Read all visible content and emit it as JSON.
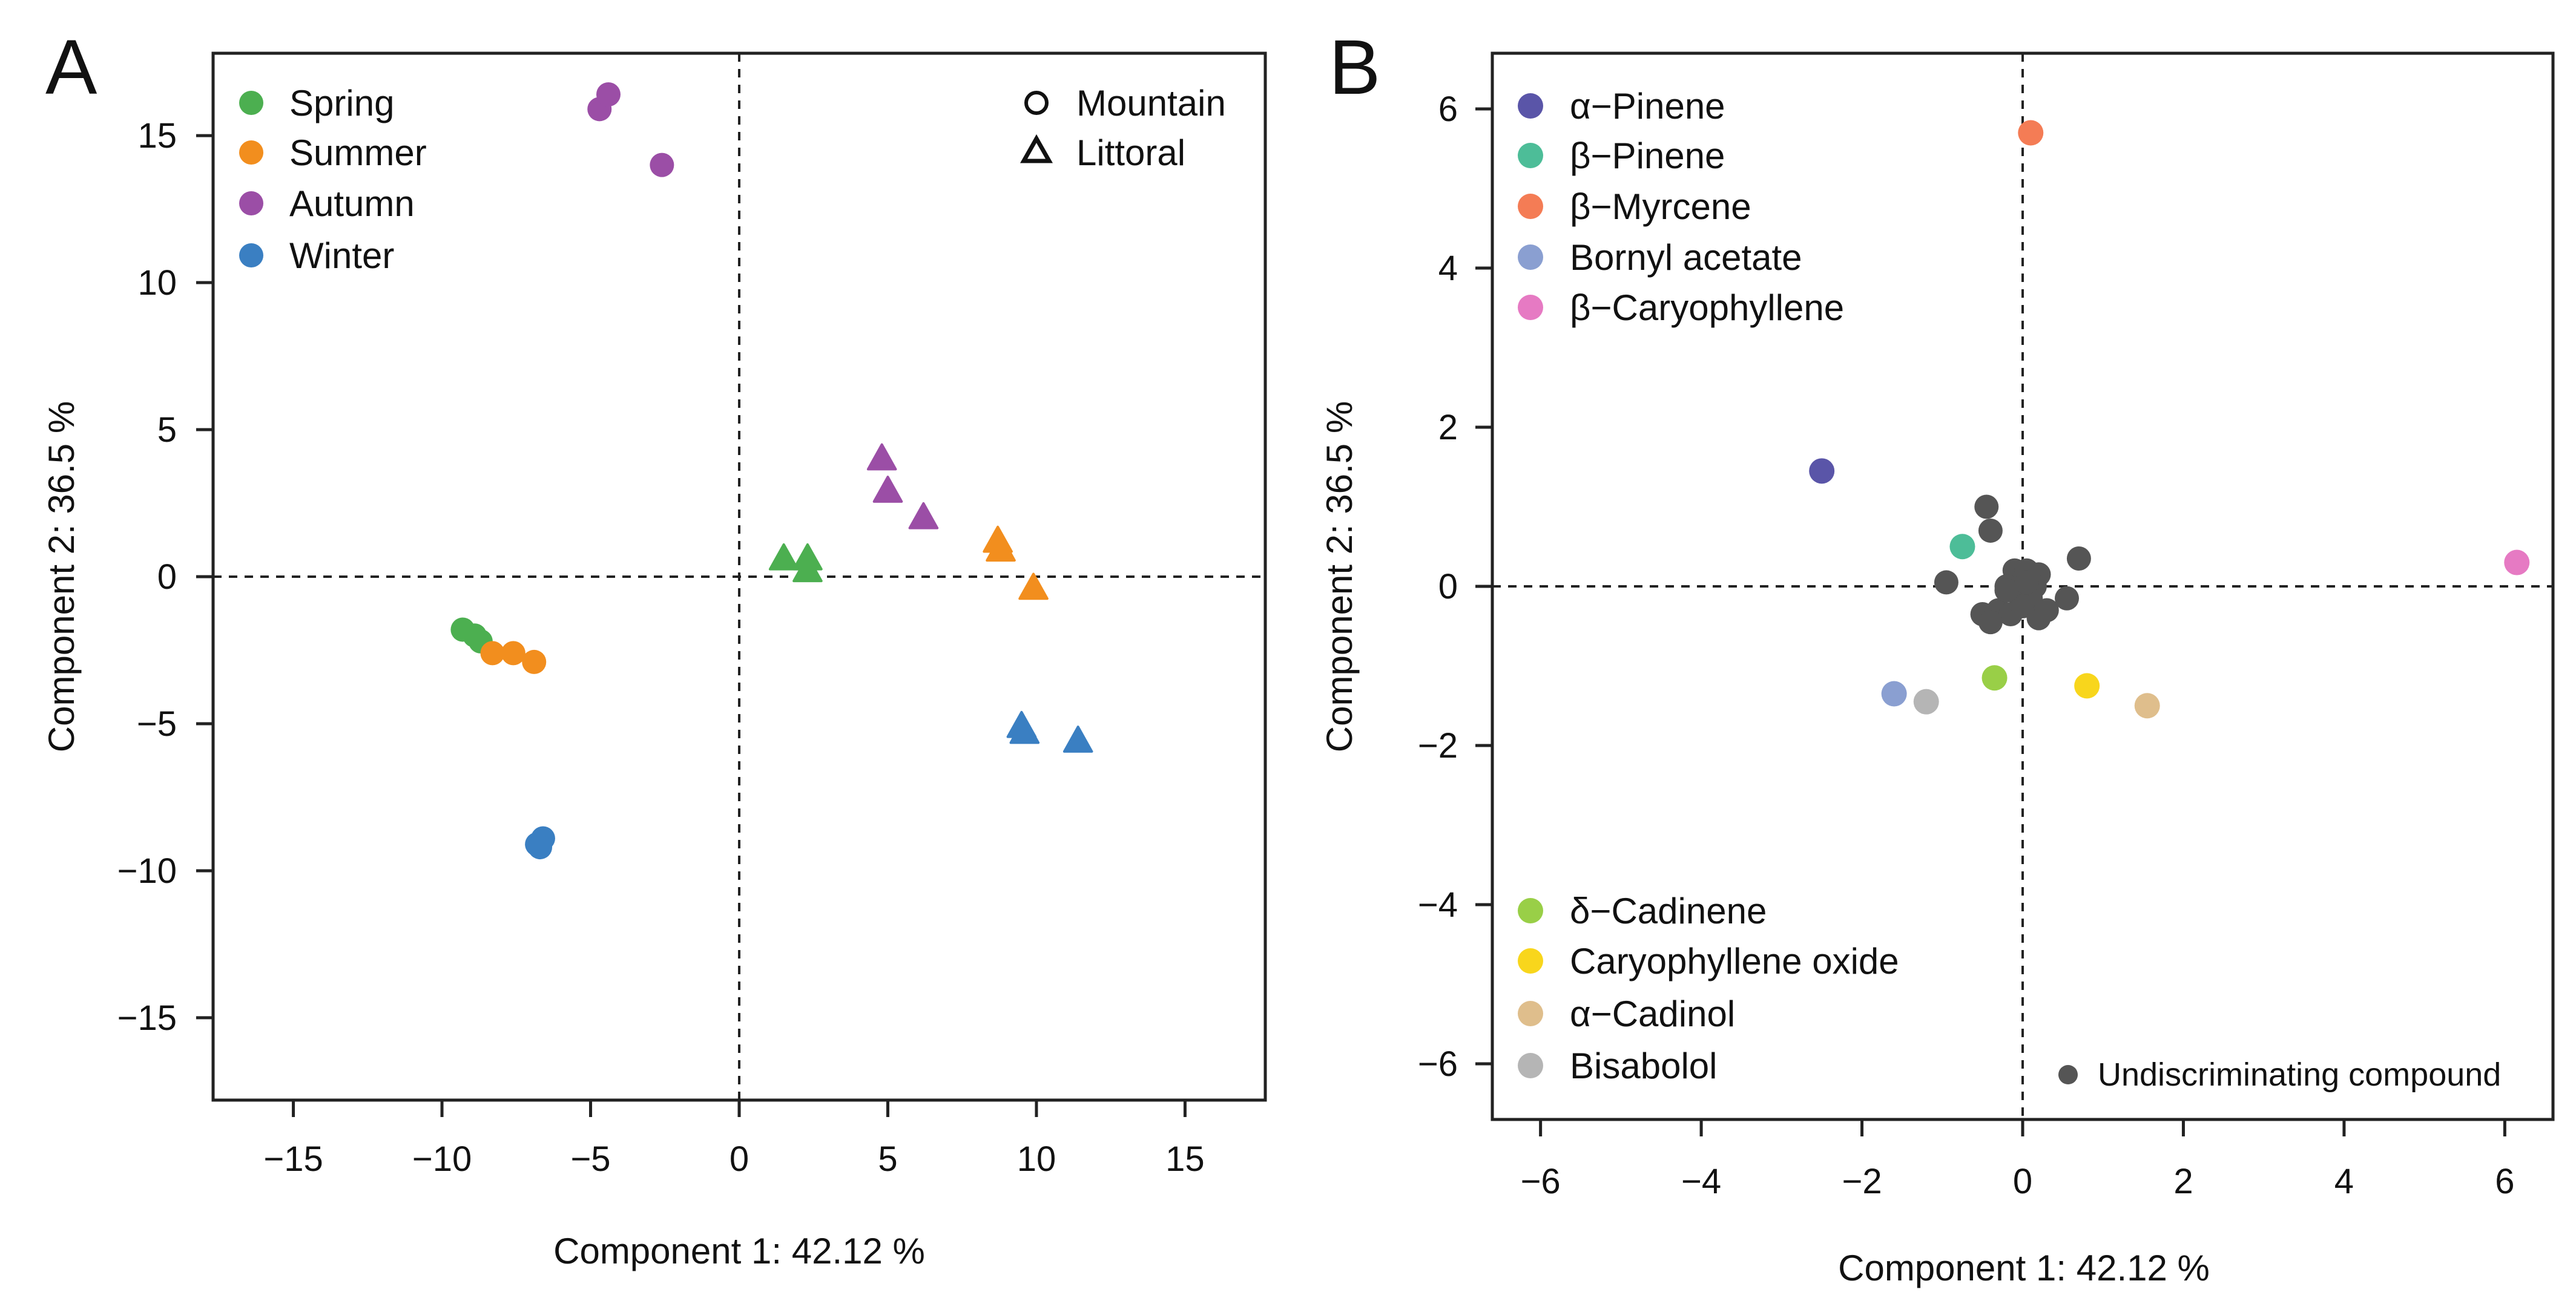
{
  "chart_data": [
    {
      "panel": "A",
      "type": "scatter",
      "xlabel": "Component 1: 42.12 %",
      "ylabel": "Component 2: 36.5 %",
      "xlim": [
        -17.7,
        17.7
      ],
      "ylim": [
        -17.8,
        17.8
      ],
      "xticks": [
        -15,
        -10,
        -5,
        0,
        5,
        10,
        15
      ],
      "yticks": [
        -15,
        -10,
        -5,
        0,
        5,
        10,
        15
      ],
      "tick_labels_x": [
        "−15",
        "−10",
        "−5",
        "0",
        "5",
        "10",
        "15"
      ],
      "tick_labels_y": [
        "−15",
        "−10",
        "−5",
        "0",
        "5",
        "10",
        "15"
      ],
      "reference_lines": {
        "x": 0,
        "y": 0,
        "style": "dashed"
      },
      "color_legend": [
        {
          "label": "Spring",
          "color": "#4caf50"
        },
        {
          "label": "Summer",
          "color": "#f28e1e"
        },
        {
          "label": "Autumn",
          "color": "#9b4ea6"
        },
        {
          "label": "Winter",
          "color": "#3a7fc2"
        }
      ],
      "shape_legend": [
        {
          "label": "Mountain",
          "shape": "circle"
        },
        {
          "label": "Littoral",
          "shape": "triangle"
        }
      ],
      "series": [
        {
          "name": "Spring",
          "color": "#4caf50",
          "points": [
            {
              "x": -9.3,
              "y": -1.8,
              "shape": "circle"
            },
            {
              "x": -8.9,
              "y": -2.0,
              "shape": "circle"
            },
            {
              "x": -8.7,
              "y": -2.2,
              "shape": "circle"
            },
            {
              "x": 1.5,
              "y": 0.6,
              "shape": "triangle"
            },
            {
              "x": 2.3,
              "y": 0.6,
              "shape": "triangle"
            },
            {
              "x": 2.3,
              "y": 0.2,
              "shape": "triangle"
            }
          ]
        },
        {
          "name": "Summer",
          "color": "#f28e1e",
          "points": [
            {
              "x": -8.3,
              "y": -2.6,
              "shape": "circle"
            },
            {
              "x": -7.6,
              "y": -2.6,
              "shape": "circle"
            },
            {
              "x": -6.9,
              "y": -2.9,
              "shape": "circle"
            },
            {
              "x": 8.7,
              "y": 1.2,
              "shape": "triangle"
            },
            {
              "x": 8.8,
              "y": 0.9,
              "shape": "triangle"
            },
            {
              "x": 9.9,
              "y": -0.4,
              "shape": "triangle"
            }
          ]
        },
        {
          "name": "Autumn",
          "color": "#9b4ea6",
          "points": [
            {
              "x": -4.7,
              "y": 15.9,
              "shape": "circle"
            },
            {
              "x": -4.4,
              "y": 16.4,
              "shape": "circle"
            },
            {
              "x": -2.6,
              "y": 14.0,
              "shape": "circle"
            },
            {
              "x": 4.8,
              "y": 4.0,
              "shape": "triangle"
            },
            {
              "x": 5.0,
              "y": 2.9,
              "shape": "triangle"
            },
            {
              "x": 6.2,
              "y": 2.0,
              "shape": "triangle"
            }
          ]
        },
        {
          "name": "Winter",
          "color": "#3a7fc2",
          "points": [
            {
              "x": -6.8,
              "y": -9.1,
              "shape": "circle"
            },
            {
              "x": -6.6,
              "y": -8.9,
              "shape": "circle"
            },
            {
              "x": -6.7,
              "y": -9.2,
              "shape": "circle"
            },
            {
              "x": 9.5,
              "y": -5.1,
              "shape": "triangle"
            },
            {
              "x": 9.6,
              "y": -5.3,
              "shape": "triangle"
            },
            {
              "x": 11.4,
              "y": -5.6,
              "shape": "triangle"
            }
          ]
        }
      ]
    },
    {
      "panel": "B",
      "type": "scatter",
      "xlabel": "Component 1: 42.12 %",
      "ylabel": "Component 2: 36.5 %",
      "xlim": [
        -6.6,
        6.6
      ],
      "ylim": [
        -6.7,
        6.7
      ],
      "xticks": [
        -6,
        -4,
        -2,
        0,
        2,
        4,
        6
      ],
      "yticks": [
        -6,
        -4,
        -2,
        0,
        2,
        4,
        6
      ],
      "tick_labels_x": [
        "−6",
        "−4",
        "−2",
        "0",
        "2",
        "4",
        "6"
      ],
      "tick_labels_y": [
        "−6",
        "−4",
        "−2",
        "0",
        "2",
        "4",
        "6"
      ],
      "reference_lines": {
        "x": 0,
        "y": 0,
        "style": "dashed"
      },
      "compounds": [
        {
          "label": "α−Pinene",
          "color": "#5a55a8",
          "x": -2.5,
          "y": 1.45
        },
        {
          "label": "β−Pinene",
          "color": "#4dbd98",
          "x": -0.75,
          "y": 0.5
        },
        {
          "label": "β−Myrcene",
          "color": "#f47c55",
          "x": 0.1,
          "y": 5.7
        },
        {
          "label": "Bornyl acetate",
          "color": "#8a9fd1",
          "x": -1.6,
          "y": -1.35
        },
        {
          "label": "β−Caryophyllene",
          "color": "#e67ac3",
          "x": 6.15,
          "y": 0.3
        },
        {
          "label": "δ−Cadinene",
          "color": "#99cf47",
          "x": -0.35,
          "y": -1.15
        },
        {
          "label": "Caryophyllene oxide",
          "color": "#f8d61c",
          "x": 0.8,
          "y": -1.25
        },
        {
          "label": "α−Cadinol",
          "color": "#dfbe8c",
          "x": 1.55,
          "y": -1.5
        },
        {
          "label": "Bisabolol",
          "color": "#b5b5b5",
          "x": -1.2,
          "y": -1.45
        }
      ],
      "undiscriminating": {
        "label": "Undiscriminating compound",
        "color": "#555555",
        "points": [
          {
            "x": -0.45,
            "y": 1.0
          },
          {
            "x": -0.4,
            "y": 0.7
          },
          {
            "x": -0.1,
            "y": 0.2
          },
          {
            "x": 0.05,
            "y": 0.2
          },
          {
            "x": 0.2,
            "y": 0.15
          },
          {
            "x": -0.2,
            "y": 0.0
          },
          {
            "x": 0.0,
            "y": 0.0
          },
          {
            "x": 0.15,
            "y": 0.0
          },
          {
            "x": -0.05,
            "y": -0.1
          },
          {
            "x": 0.1,
            "y": -0.15
          },
          {
            "x": -0.3,
            "y": -0.3
          },
          {
            "x": -0.15,
            "y": -0.35
          },
          {
            "x": 0.0,
            "y": -0.25
          },
          {
            "x": 0.2,
            "y": -0.4
          },
          {
            "x": -0.5,
            "y": -0.35
          },
          {
            "x": -0.4,
            "y": -0.45
          },
          {
            "x": 0.3,
            "y": -0.3
          },
          {
            "x": 0.55,
            "y": -0.15
          },
          {
            "x": 0.7,
            "y": 0.35
          },
          {
            "x": -0.95,
            "y": 0.05
          },
          {
            "x": -0.2,
            "y": -0.05
          },
          {
            "x": 0.05,
            "y": 0.05
          }
        ]
      }
    }
  ]
}
